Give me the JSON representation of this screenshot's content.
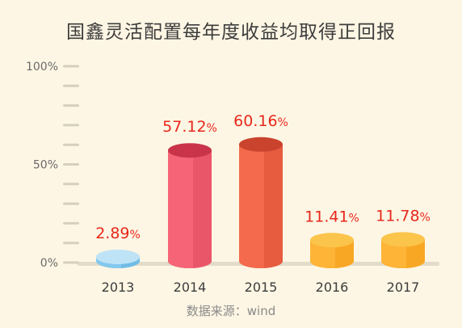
{
  "chart_data": {
    "type": "bar",
    "title": "国鑫灵活配置每年度收益均取得正回报",
    "categories": [
      "2013",
      "2014",
      "2015",
      "2016",
      "2017"
    ],
    "values": [
      2.89,
      57.12,
      60.16,
      11.41,
      11.78
    ],
    "value_labels": [
      "2.89",
      "57.12",
      "60.16",
      "11.41",
      "11.78"
    ],
    "value_suffix": "%",
    "ylim": [
      0,
      100
    ],
    "y_ticks": [
      {
        "value": 0,
        "label": "0%"
      },
      {
        "value": 50,
        "label": "50%"
      },
      {
        "value": 100,
        "label": "100%"
      }
    ],
    "minor_tick_step": 10,
    "grid": false,
    "legend": false,
    "bar_colors": [
      {
        "front": "#84c8ee",
        "side": "#5fb2e0",
        "top": "#bfe3f6"
      },
      {
        "front": "#f56577",
        "side": "#e04a5e",
        "top": "#c9344a"
      },
      {
        "front": "#f36a4c",
        "side": "#dc4f35",
        "top": "#c9432d"
      },
      {
        "front": "#fdb437",
        "side": "#f49c16",
        "top": "#fbc44a"
      },
      {
        "front": "#fdb437",
        "side": "#f49c16",
        "top": "#fbc44a"
      }
    ],
    "label_color": "#e8281c",
    "source": "数据来源：wind"
  }
}
